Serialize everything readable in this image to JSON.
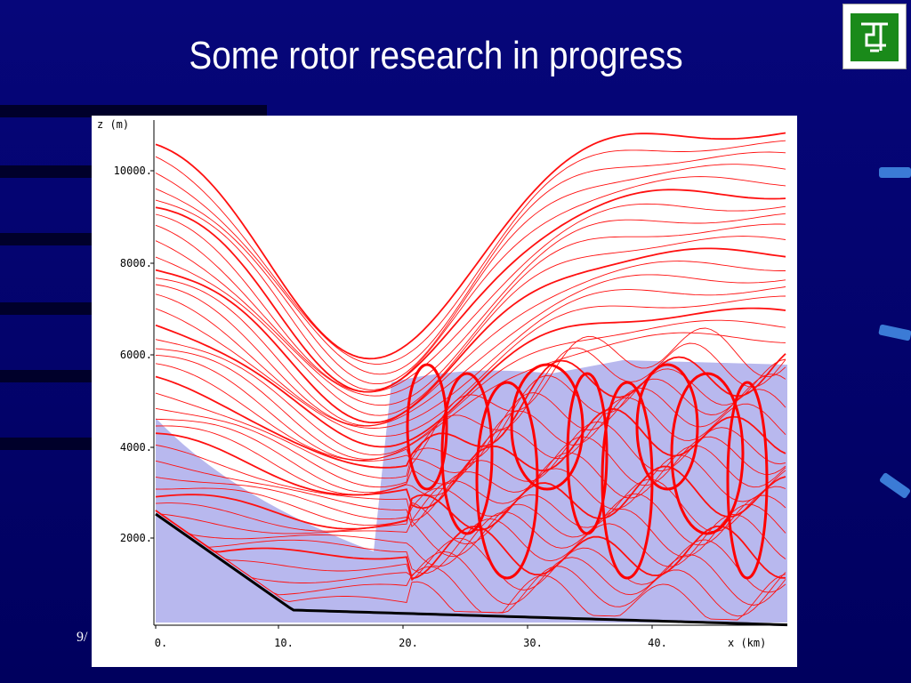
{
  "title": "Some rotor research in progress",
  "footer": "9/",
  "figure": {
    "y_axis_label": "z (m)",
    "x_axis_label": "x (km)",
    "y_ticks": [
      "10000.",
      "8000.",
      "6000.",
      "4000.",
      "2000."
    ],
    "x_ticks": [
      "0.",
      "10.",
      "20.",
      "30.",
      "40."
    ]
  }
}
